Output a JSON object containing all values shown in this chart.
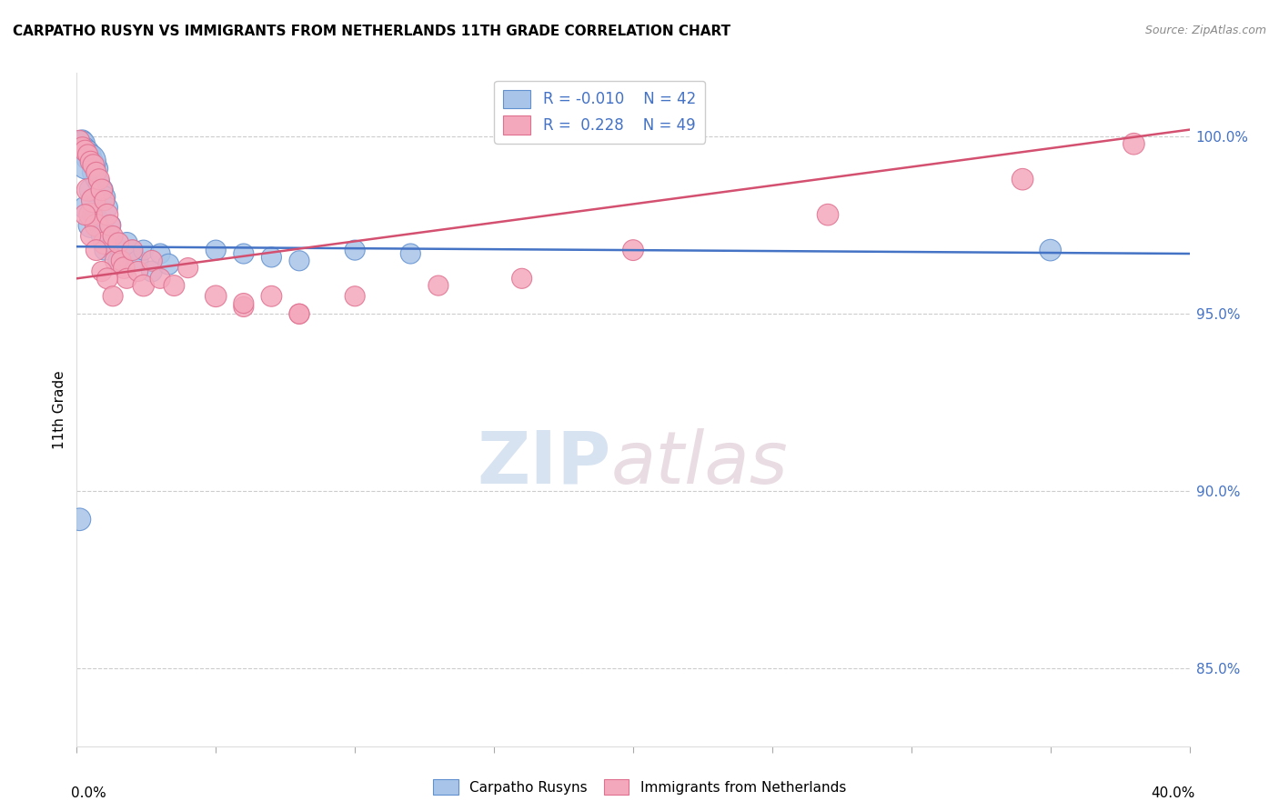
{
  "title": "CARPATHO RUSYN VS IMMIGRANTS FROM NETHERLANDS 11TH GRADE CORRELATION CHART",
  "source": "Source: ZipAtlas.com",
  "ylabel": "11th Grade",
  "ytick_values": [
    0.85,
    0.9,
    0.95,
    1.0
  ],
  "xmin": 0.0,
  "xmax": 0.4,
  "ymin": 0.828,
  "ymax": 1.018,
  "legend_blue_r": "-0.010",
  "legend_blue_n": "42",
  "legend_pink_r": "0.228",
  "legend_pink_n": "49",
  "blue_fill": "#a8c4e8",
  "pink_fill": "#f4a8bc",
  "blue_edge": "#6090d0",
  "pink_edge": "#e07090",
  "blue_line": "#4472c4",
  "pink_line": "#d45070",
  "blue_line_y0": 0.969,
  "blue_line_y1": 0.967,
  "pink_line_y0": 0.96,
  "pink_line_y1": 1.002,
  "blue_pts_x": [
    0.001,
    0.002,
    0.002,
    0.003,
    0.003,
    0.004,
    0.004,
    0.005,
    0.005,
    0.005,
    0.006,
    0.006,
    0.006,
    0.007,
    0.007,
    0.007,
    0.008,
    0.008,
    0.009,
    0.009,
    0.01,
    0.01,
    0.011,
    0.012,
    0.013,
    0.015,
    0.016,
    0.018,
    0.02,
    0.022,
    0.024,
    0.027,
    0.03,
    0.033,
    0.05,
    0.06,
    0.07,
    0.08,
    0.1,
    0.12,
    0.35,
    0.004
  ],
  "blue_pts_y": [
    0.892,
    0.999,
    0.998,
    0.997,
    0.98,
    0.996,
    0.994,
    0.995,
    0.985,
    0.975,
    0.993,
    0.99,
    0.978,
    0.991,
    0.988,
    0.977,
    0.987,
    0.975,
    0.985,
    0.972,
    0.983,
    0.968,
    0.98,
    0.975,
    0.97,
    0.965,
    0.968,
    0.97,
    0.968,
    0.965,
    0.968,
    0.962,
    0.967,
    0.964,
    0.968,
    0.967,
    0.966,
    0.965,
    0.968,
    0.967,
    0.968,
    0.993
  ],
  "blue_pts_s": [
    35,
    30,
    45,
    28,
    35,
    32,
    38,
    30,
    35,
    42,
    28,
    35,
    32,
    38,
    30,
    35,
    32,
    28,
    35,
    30,
    32,
    28,
    30,
    32,
    28,
    30,
    28,
    32,
    28,
    30,
    28,
    30,
    28,
    30,
    28,
    28,
    28,
    28,
    28,
    28,
    32,
    90
  ],
  "pink_pts_x": [
    0.001,
    0.002,
    0.003,
    0.004,
    0.004,
    0.005,
    0.005,
    0.006,
    0.006,
    0.007,
    0.007,
    0.008,
    0.009,
    0.01,
    0.01,
    0.011,
    0.012,
    0.013,
    0.014,
    0.015,
    0.016,
    0.017,
    0.018,
    0.02,
    0.022,
    0.024,
    0.027,
    0.03,
    0.035,
    0.04,
    0.05,
    0.06,
    0.07,
    0.08,
    0.003,
    0.005,
    0.007,
    0.009,
    0.011,
    0.013,
    0.06,
    0.08,
    0.1,
    0.13,
    0.16,
    0.2,
    0.27,
    0.34,
    0.38
  ],
  "pink_pts_y": [
    0.999,
    0.997,
    0.996,
    0.995,
    0.985,
    0.993,
    0.978,
    0.992,
    0.982,
    0.99,
    0.975,
    0.988,
    0.985,
    0.982,
    0.97,
    0.978,
    0.975,
    0.972,
    0.965,
    0.97,
    0.965,
    0.963,
    0.96,
    0.968,
    0.962,
    0.958,
    0.965,
    0.96,
    0.958,
    0.963,
    0.955,
    0.952,
    0.955,
    0.95,
    0.978,
    0.972,
    0.968,
    0.962,
    0.96,
    0.955,
    0.953,
    0.95,
    0.955,
    0.958,
    0.96,
    0.968,
    0.978,
    0.988,
    0.998
  ],
  "pink_pts_s": [
    28,
    30,
    32,
    28,
    35,
    30,
    38,
    32,
    40,
    28,
    35,
    30,
    32,
    28,
    35,
    32,
    30,
    28,
    32,
    30,
    28,
    32,
    28,
    30,
    28,
    32,
    30,
    28,
    30,
    28,
    32,
    28,
    30,
    28,
    30,
    28,
    30,
    28,
    30,
    28,
    28,
    28,
    28,
    28,
    28,
    30,
    32,
    32,
    32
  ]
}
